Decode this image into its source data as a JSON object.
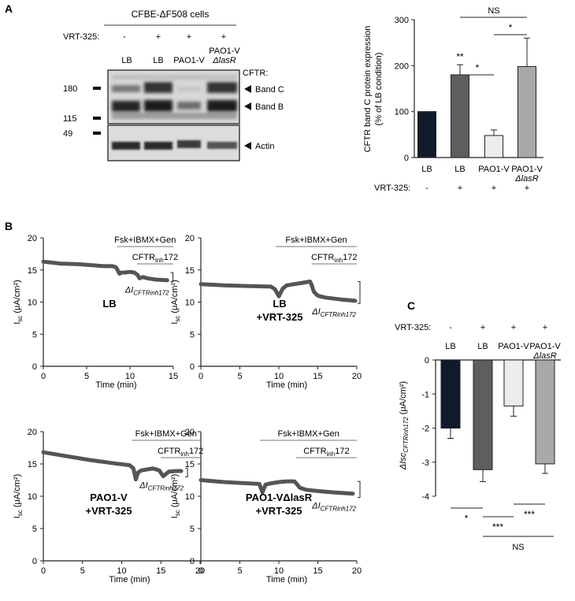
{
  "panelA": {
    "label": "A",
    "cell_line": "CFBE-ΔF508 cells",
    "vrt_label": "VRT-325:",
    "vrt_marks": [
      "-",
      "+",
      "+",
      "+"
    ],
    "lanes": [
      "LB",
      "LB",
      "PAO1-V",
      "PAO1-V",
      "ΔlasR"
    ],
    "cftr_label": "CFTR:",
    "markers": [
      "180",
      "115",
      "49"
    ],
    "band_c": "Band C",
    "band_b": "Band B",
    "actin": "Actin"
  },
  "panelB": {
    "label": "B",
    "treat1": "Fsk+IBMX+Gen",
    "treat2_main": "CFTR",
    "treat2_sub": "inh",
    "treat2_tail": "172",
    "ylabel_main": "I",
    "ylabel_sub": "sc",
    "ylabel_tail": " (μA/cm²)",
    "xlabel": "Time (min)",
    "delta_main": "ΔI",
    "delta_sub": "CFTRinh172",
    "subplots": [
      {
        "title1": "LB",
        "title2": "",
        "xticks": [
          "0",
          "5",
          "10",
          "15"
        ],
        "yticks": [
          "0",
          "5",
          "10",
          "15",
          "20"
        ]
      },
      {
        "title1": "LB",
        "title2": "+VRT-325",
        "xticks": [
          "0",
          "5",
          "10",
          "15",
          "20"
        ],
        "yticks": [
          "0",
          "5",
          "10",
          "15",
          "20"
        ]
      },
      {
        "title1": "PAO1-V",
        "title2": "+VRT-325",
        "xticks": [
          "0",
          "5",
          "10",
          "15",
          "20"
        ],
        "yticks": [
          "0",
          "5",
          "10",
          "15",
          "20"
        ]
      },
      {
        "title1": "PAO1-VΔlasR",
        "title2": "+VRT-325",
        "xticks": [
          "0",
          "5",
          "10",
          "15",
          "20"
        ],
        "yticks": [
          "0",
          "5",
          "10",
          "15",
          "20"
        ]
      }
    ]
  },
  "panelC": {
    "label": "C",
    "vrt_label": "VRT-325:",
    "vrt_marks": [
      "-",
      "+",
      "+",
      "+"
    ],
    "ylabel_main": "ΔIsc",
    "ylabel_sub": "CFTRinh172",
    "ylabel_tail": " (μA/cm²)",
    "yticks": [
      "0",
      "-1",
      "-2",
      "-3",
      "-4"
    ],
    "sig": [
      "*",
      "***",
      "***"
    ],
    "ns": "NS"
  },
  "chart_data": [
    {
      "type": "bar",
      "id": "cftr-band-c",
      "title": "",
      "ylabel_line1": "CFTR band C protein expression",
      "ylabel_line2": "(% of LB condition)",
      "xlabel_prefix": "VRT-325:",
      "categories": [
        "LB",
        "LB",
        "PAO1-V",
        "PAO1-V ΔlasR"
      ],
      "category_lines": [
        [
          "LB"
        ],
        [
          "LB"
        ],
        [
          "PAO1-V"
        ],
        [
          "PAO1-V",
          "ΔlasR"
        ]
      ],
      "vrt325": [
        "-",
        "+",
        "+",
        "+"
      ],
      "values": [
        100,
        180,
        48,
        198
      ],
      "errors": [
        0,
        22,
        12,
        62
      ],
      "colors": [
        "#111a2a",
        "#5e5e5e",
        "#ececec",
        "#a9a9a9"
      ],
      "ylim": [
        0,
        300
      ],
      "yticks": [
        "0",
        "100",
        "200",
        "300"
      ],
      "annotations": [
        "**",
        "*",
        "*",
        "NS"
      ]
    },
    {
      "type": "line",
      "id": "isc-lb",
      "title": "LB",
      "xlabel": "Time (min)",
      "ylabel": "Isc (μA/cm²)",
      "xlim": [
        0,
        15
      ],
      "ylim": [
        0,
        20
      ],
      "x": [
        0,
        2,
        4,
        6,
        7,
        8,
        8.4,
        8.6,
        8.8,
        9,
        9.4,
        10,
        10.5,
        10.9,
        11.1,
        11.5,
        12,
        13,
        14.3
      ],
      "y": [
        16.3,
        16.0,
        15.9,
        15.7,
        15.6,
        15.6,
        15.4,
        14.9,
        14.4,
        14.6,
        14.6,
        14.7,
        14.6,
        14.2,
        13.7,
        13.9,
        13.7,
        13.5,
        13.4
      ]
    },
    {
      "type": "line",
      "id": "isc-lb-vrt",
      "title": "LB +VRT-325",
      "xlabel": "Time (min)",
      "ylabel": "Isc (μA/cm²)",
      "xlim": [
        0,
        20
      ],
      "ylim": [
        0,
        20
      ],
      "x": [
        0,
        3,
        6,
        9,
        9.5,
        10,
        10.5,
        11,
        12,
        13,
        14,
        14.2,
        14.5,
        15,
        16,
        18,
        19.8
      ],
      "y": [
        12.8,
        12.6,
        12.5,
        12.4,
        12.0,
        10.9,
        12.1,
        12.6,
        12.8,
        13.0,
        13.2,
        12.7,
        11.6,
        11.0,
        10.7,
        10.4,
        10.2
      ]
    },
    {
      "type": "line",
      "id": "isc-pao1v-vrt",
      "title": "PAO1-V +VRT-325",
      "xlabel": "Time (min)",
      "ylabel": "Isc (μA/cm²)",
      "xlim": [
        0,
        20
      ],
      "ylim": [
        0,
        20
      ],
      "x": [
        0,
        3,
        6,
        9,
        11,
        11.5,
        11.8,
        12.1,
        12.5,
        13,
        14,
        14.8,
        15.3,
        16,
        17,
        17.6
      ],
      "y": [
        16.8,
        16.2,
        15.6,
        15.1,
        14.8,
        14.3,
        12.6,
        13.7,
        14.0,
        14.1,
        14.3,
        14.0,
        13.1,
        13.8,
        13.9,
        13.9
      ]
    },
    {
      "type": "line",
      "id": "isc-pao1v-lasr-vrt",
      "title": "PAO1-VΔlasR +VRT-325",
      "xlabel": "Time (min)",
      "ylabel": "Isc (μA/cm²)",
      "xlim": [
        0,
        20
      ],
      "ylim": [
        0,
        20
      ],
      "x": [
        0,
        3,
        6,
        7.5,
        7.9,
        8.3,
        9,
        10,
        11,
        12,
        12.3,
        12.7,
        13.5,
        15,
        17,
        19.5
      ],
      "y": [
        12.5,
        12.2,
        12.0,
        11.9,
        10.6,
        11.8,
        12.0,
        12.2,
        12.3,
        12.3,
        11.9,
        11.3,
        11.0,
        10.8,
        10.6,
        10.4
      ]
    },
    {
      "type": "bar",
      "id": "delta-isc",
      "title": "",
      "xlabel_prefix": "VRT-325:",
      "categories": [
        "LB",
        "LB",
        "PAO1-V",
        "PAO1-V ΔlasR"
      ],
      "category_lines": [
        [
          "LB"
        ],
        [
          "LB"
        ],
        [
          "PAO1-V"
        ],
        [
          "PAO1-V",
          "ΔlasR"
        ]
      ],
      "vrt325": [
        "-",
        "+",
        "+",
        "+"
      ],
      "values": [
        -2.0,
        -3.22,
        -1.35,
        -3.05
      ],
      "errors": [
        0.3,
        0.35,
        0.3,
        0.28
      ],
      "colors": [
        "#111a2a",
        "#5e5e5e",
        "#ececec",
        "#a9a9a9"
      ],
      "ylim": [
        -4,
        0
      ],
      "annotations": [
        "*",
        "***",
        "***",
        "NS"
      ]
    }
  ]
}
